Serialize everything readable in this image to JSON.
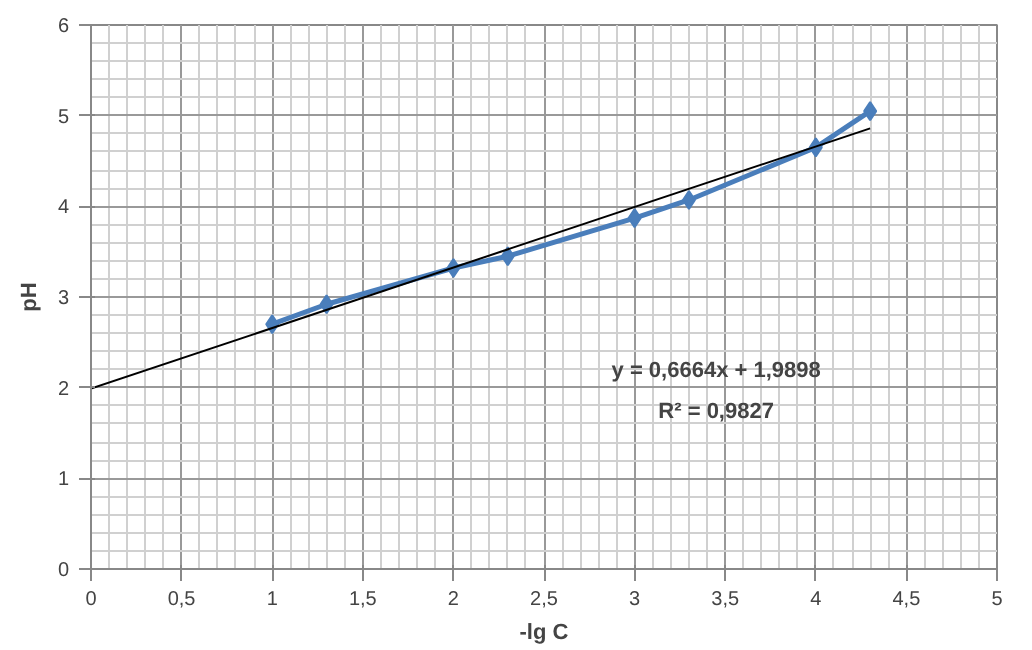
{
  "chart_data": {
    "type": "line",
    "xlabel": "-lg C",
    "ylabel": "pH",
    "xlim": [
      0,
      5
    ],
    "ylim": [
      0,
      6
    ],
    "xticks": [
      0,
      {
        "value": 0.5,
        "label": "0,5"
      },
      1,
      {
        "value": 1.5,
        "label": "1,5"
      },
      2,
      {
        "value": 2.5,
        "label": "2,5"
      },
      3,
      {
        "value": 3.5,
        "label": "3,5"
      },
      4,
      {
        "value": 4.5,
        "label": "4,5"
      },
      5
    ],
    "yticks": [
      0,
      1,
      2,
      3,
      4,
      5,
      6
    ],
    "grid": true,
    "series": [
      {
        "color": "#4a7ebb",
        "marker": "diamond",
        "x": [
          1,
          1.3,
          2,
          2.3,
          3,
          3.3,
          4,
          4.3
        ],
        "values": [
          2.7,
          2.92,
          3.32,
          3.45,
          3.87,
          4.07,
          4.65,
          5.05
        ]
      },
      {
        "type": "line",
        "color": "#000000",
        "marker": "none",
        "x": [
          0,
          4.3
        ],
        "values": [
          1.99,
          4.86
        ]
      }
    ],
    "annotations": [
      "y = 0,6664x + 1,9898",
      "R² = 0,9827"
    ]
  }
}
